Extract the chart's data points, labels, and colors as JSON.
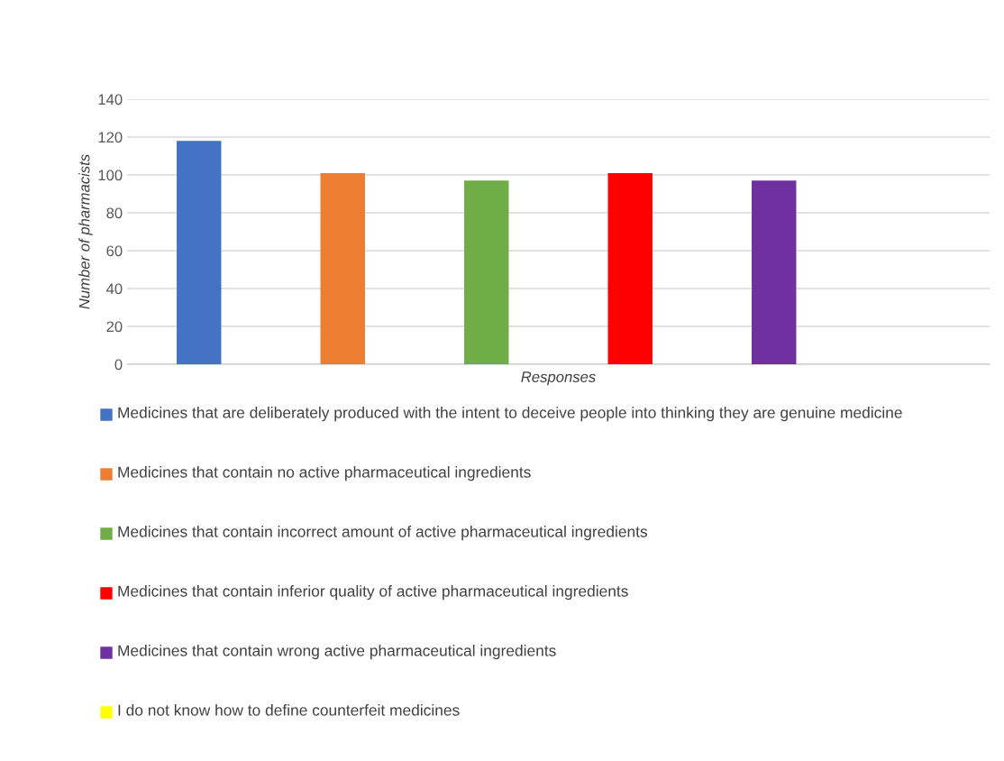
{
  "chart_data": {
    "type": "bar",
    "xlabel": "Responses",
    "ylabel": "Number of pharmacists",
    "categories": [
      null
    ],
    "series": [
      {
        "name": "Medicines that are deliberately produced with the intent to deceive people into thinking they are genuine medicine",
        "color": "#4472c4",
        "values": [
          118
        ]
      },
      {
        "name": "Medicines that contain no active pharmaceutical ingredients",
        "color": "#ed7d31",
        "values": [
          101
        ]
      },
      {
        "name": "Medicines that contain incorrect amount of active pharmaceutical ingredients",
        "color": "#70ad47",
        "values": [
          97
        ]
      },
      {
        "name": "Medicines that contain inferior quality of active pharmaceutical ingredients",
        "color": "#ff0000",
        "values": [
          101
        ]
      },
      {
        "name": "Medicines that contain wrong active pharmaceutical ingredients",
        "color": "#7030a0",
        "values": [
          97
        ]
      },
      {
        "name": "I do not know how to define counterfeit medicines",
        "color": "#ffff00",
        "values": [
          0
        ]
      }
    ],
    "ylim": [
      0,
      140
    ],
    "yticks": [
      0,
      20,
      40,
      60,
      80,
      100,
      120,
      140
    ],
    "grid": "y",
    "legend": "bottom"
  }
}
